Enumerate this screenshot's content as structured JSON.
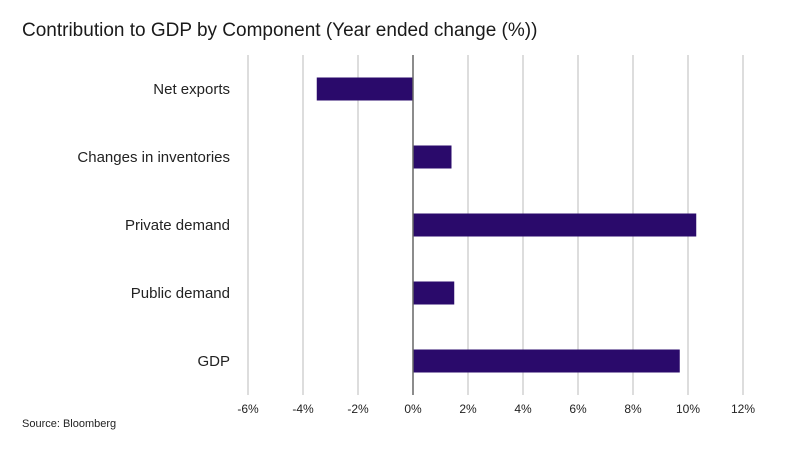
{
  "title": "Contribution to GDP by Component (Year ended change (%))",
  "source": "Source: Bloomberg",
  "colors": {
    "bar": "#2a0a6b",
    "gridline": "#bbbbbb",
    "zero_axis": "#666666",
    "text": "#222222"
  },
  "chart_data": {
    "type": "bar",
    "orientation": "horizontal",
    "categories": [
      "Net exports",
      "Changes in inventories",
      "Private demand",
      "Public demand",
      "GDP"
    ],
    "values": [
      -3.5,
      1.4,
      10.3,
      1.5,
      9.7
    ],
    "xlim": [
      -6,
      12
    ],
    "xticks": [
      -6,
      -4,
      -2,
      0,
      2,
      4,
      6,
      8,
      10,
      12
    ],
    "xtick_labels": [
      "-6%",
      "-4%",
      "-2%",
      "0%",
      "2%",
      "4%",
      "6%",
      "8%",
      "10%",
      "12%"
    ],
    "grid": "vertical",
    "legend": "none"
  }
}
